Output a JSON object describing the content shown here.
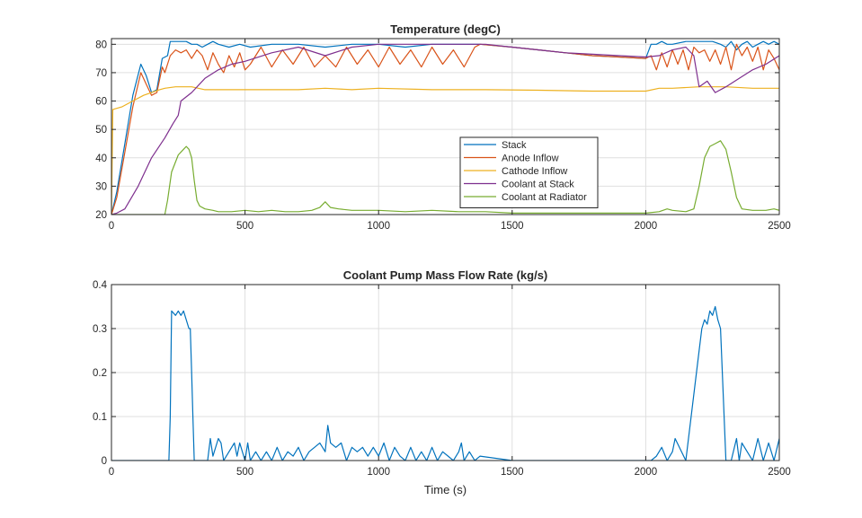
{
  "chart_data": [
    {
      "type": "line",
      "title": "Temperature (degC)",
      "xlabel": "",
      "ylabel": "",
      "xlim": [
        0,
        2500
      ],
      "ylim": [
        20,
        82
      ],
      "xticks": [
        0,
        500,
        1000,
        1500,
        2000,
        2500
      ],
      "yticks": [
        20,
        30,
        40,
        50,
        60,
        70,
        80
      ],
      "grid": true,
      "legend": "center-right, inside axes",
      "series": [
        {
          "name": "Stack",
          "color": "#0072BD",
          "x": [
            0,
            20,
            50,
            80,
            110,
            130,
            150,
            170,
            190,
            210,
            220,
            240,
            260,
            280,
            300,
            320,
            340,
            360,
            380,
            400,
            440,
            480,
            520,
            600,
            700,
            800,
            900,
            1000,
            1100,
            1200,
            1300,
            1380,
            1500,
            1600,
            1700,
            1800,
            1900,
            2000,
            2020,
            2040,
            2060,
            2080,
            2100,
            2150,
            2200,
            2250,
            2280,
            2300,
            2320,
            2340,
            2360,
            2380,
            2400,
            2420,
            2440,
            2460,
            2480,
            2500
          ],
          "y": [
            20,
            28,
            45,
            62,
            73,
            69,
            63,
            64,
            75,
            76,
            81,
            81,
            81,
            81,
            80,
            80,
            79,
            80,
            81,
            80,
            79,
            80,
            79,
            80,
            80,
            79,
            80,
            80,
            79,
            80,
            80,
            80,
            79,
            78,
            77,
            76,
            75.5,
            75,
            80,
            80,
            81,
            80,
            80,
            81,
            81,
            81,
            80,
            79,
            81,
            78,
            80,
            81,
            79,
            80,
            81,
            80,
            81,
            80
          ]
        },
        {
          "name": "Anode Inflow",
          "color": "#D95319",
          "x": [
            0,
            20,
            50,
            80,
            110,
            130,
            150,
            170,
            190,
            200,
            220,
            240,
            260,
            280,
            300,
            320,
            340,
            360,
            380,
            400,
            420,
            440,
            460,
            480,
            500,
            520,
            560,
            600,
            640,
            680,
            720,
            760,
            800,
            840,
            880,
            920,
            960,
            1000,
            1040,
            1080,
            1120,
            1160,
            1200,
            1240,
            1280,
            1320,
            1360,
            1380,
            1500,
            1600,
            1700,
            1800,
            1900,
            2000,
            2020,
            2040,
            2060,
            2080,
            2100,
            2120,
            2140,
            2160,
            2180,
            2200,
            2220,
            2240,
            2260,
            2280,
            2300,
            2320,
            2340,
            2360,
            2380,
            2400,
            2420,
            2440,
            2460,
            2480,
            2500
          ],
          "y": [
            20,
            26,
            42,
            58,
            70,
            66,
            62,
            63,
            72,
            70,
            76,
            78,
            77,
            78,
            75,
            78,
            76,
            71,
            77,
            73,
            70,
            76,
            72,
            77,
            71,
            73,
            79,
            72,
            78,
            73,
            79,
            72,
            76,
            72,
            79,
            73,
            78,
            72,
            79,
            73,
            78,
            72,
            79,
            73,
            78,
            72,
            79,
            80,
            79,
            78,
            77,
            76,
            75.5,
            75,
            76,
            71,
            77,
            72,
            78,
            73,
            78,
            71,
            79,
            77,
            78,
            74,
            78,
            73,
            79,
            71,
            80,
            76,
            79,
            74,
            79,
            71,
            78,
            75,
            71
          ]
        },
        {
          "name": "Cathode Inflow",
          "color": "#EDB120",
          "x": [
            0,
            5,
            40,
            80,
            120,
            150,
            180,
            200,
            240,
            280,
            300,
            350,
            400,
            500,
            600,
            700,
            800,
            900,
            1000,
            1200,
            1400,
            1600,
            1800,
            2000,
            2050,
            2100,
            2200,
            2300,
            2400,
            2500
          ],
          "y": [
            20,
            57,
            58,
            60,
            62,
            63,
            64,
            64.5,
            65,
            65,
            65,
            64,
            64,
            64,
            64,
            64,
            64.5,
            64,
            64.5,
            64,
            64,
            63.8,
            63.5,
            63.5,
            64.5,
            64.5,
            65,
            65,
            64.5,
            64.5
          ]
        },
        {
          "name": "Coolant at Stack",
          "color": "#7E2F8E",
          "x": [
            0,
            20,
            50,
            100,
            150,
            200,
            230,
            250,
            260,
            300,
            350,
            400,
            450,
            500,
            600,
            700,
            800,
            900,
            1000,
            1100,
            1200,
            1300,
            1400,
            1500,
            1600,
            1700,
            1800,
            1900,
            2000,
            2050,
            2100,
            2150,
            2180,
            2200,
            2230,
            2260,
            2300,
            2350,
            2400,
            2450,
            2500
          ],
          "y": [
            20,
            20.5,
            22,
            30,
            40,
            47,
            52,
            55,
            60,
            63,
            68,
            71,
            73,
            74,
            77,
            79,
            76,
            79,
            80,
            80,
            80,
            80,
            80,
            79,
            78,
            77,
            76.5,
            76,
            75.5,
            76,
            78,
            79,
            76,
            65,
            67,
            63,
            65,
            68,
            71,
            73,
            76
          ]
        },
        {
          "name": "Coolant at Radiator",
          "color": "#77AC30",
          "x": [
            0,
            100,
            200,
            210,
            225,
            250,
            270,
            280,
            290,
            300,
            310,
            320,
            330,
            350,
            380,
            400,
            450,
            500,
            550,
            600,
            650,
            700,
            750,
            780,
            800,
            820,
            850,
            900,
            1000,
            1100,
            1200,
            1300,
            1400,
            1500,
            1800,
            2000,
            2050,
            2080,
            2100,
            2150,
            2180,
            2200,
            2220,
            2240,
            2260,
            2280,
            2300,
            2320,
            2340,
            2360,
            2400,
            2450,
            2480,
            2500
          ],
          "y": [
            20,
            20,
            20,
            25,
            35,
            41,
            43,
            44,
            43,
            40,
            32,
            25,
            23,
            22,
            21.5,
            21,
            21,
            21.5,
            21,
            21.5,
            21,
            21,
            21.5,
            22.5,
            24.5,
            22.5,
            22,
            21.5,
            21.5,
            21,
            21.5,
            21,
            21,
            20.5,
            20.5,
            20.5,
            21,
            22,
            21.5,
            21,
            22,
            30,
            40,
            44,
            45,
            46,
            43,
            35,
            26,
            22,
            21.5,
            21.5,
            22,
            21.5
          ]
        }
      ]
    },
    {
      "type": "line",
      "title": "Coolant Pump Mass Flow Rate (kg/s)",
      "xlabel": "Time (s)",
      "ylabel": "",
      "xlim": [
        0,
        2500
      ],
      "ylim": [
        0,
        0.4
      ],
      "xticks": [
        0,
        500,
        1000,
        1500,
        2000,
        2500
      ],
      "yticks": [
        0,
        0.1,
        0.2,
        0.3,
        0.4
      ],
      "grid": true,
      "series": [
        {
          "name": "",
          "color": "#0072BD",
          "x": [
            0,
            100,
            200,
            215,
            220,
            225,
            240,
            250,
            260,
            270,
            280,
            290,
            295,
            300,
            305,
            310,
            320,
            360,
            370,
            380,
            400,
            410,
            420,
            460,
            470,
            480,
            500,
            510,
            520,
            540,
            560,
            580,
            600,
            620,
            640,
            660,
            680,
            700,
            720,
            740,
            760,
            780,
            800,
            810,
            820,
            840,
            860,
            880,
            900,
            920,
            940,
            960,
            980,
            1000,
            1020,
            1040,
            1060,
            1080,
            1100,
            1120,
            1140,
            1160,
            1180,
            1200,
            1220,
            1240,
            1260,
            1280,
            1300,
            1310,
            1320,
            1340,
            1360,
            1380,
            1500,
            1800,
            2000,
            2020,
            2040,
            2060,
            2080,
            2100,
            2110,
            2150,
            2200,
            2210,
            2220,
            2230,
            2240,
            2250,
            2260,
            2270,
            2280,
            2300,
            2320,
            2340,
            2350,
            2360,
            2380,
            2400,
            2420,
            2440,
            2460,
            2480,
            2500
          ],
          "y": [
            0,
            0,
            0,
            0.0,
            0.1,
            0.34,
            0.33,
            0.34,
            0.33,
            0.34,
            0.32,
            0.3,
            0.3,
            0.2,
            0.1,
            0.0,
            0,
            0,
            0.05,
            0.01,
            0.05,
            0.04,
            0.0,
            0.04,
            0.01,
            0.04,
            0.0,
            0.04,
            0.0,
            0.02,
            0.0,
            0.02,
            0.0,
            0.03,
            0.0,
            0.02,
            0.01,
            0.03,
            0.0,
            0.02,
            0.03,
            0.04,
            0.02,
            0.08,
            0.04,
            0.03,
            0.04,
            0.0,
            0.03,
            0.02,
            0.03,
            0.01,
            0.03,
            0.01,
            0.04,
            0.0,
            0.03,
            0.01,
            0.0,
            0.03,
            0.0,
            0.02,
            0.0,
            0.03,
            0.0,
            0.02,
            0.01,
            0.0,
            0.02,
            0.04,
            0.0,
            0.02,
            0.0,
            0.01,
            0,
            0,
            0,
            0.0,
            0.01,
            0.03,
            0.0,
            0.02,
            0.05,
            0.0,
            0.25,
            0.3,
            0.32,
            0.31,
            0.34,
            0.33,
            0.35,
            0.32,
            0.3,
            0.0,
            0.0,
            0.05,
            0.0,
            0.04,
            0.02,
            0.0,
            0.05,
            0.0,
            0.04,
            0.0,
            0.05
          ]
        }
      ]
    }
  ]
}
